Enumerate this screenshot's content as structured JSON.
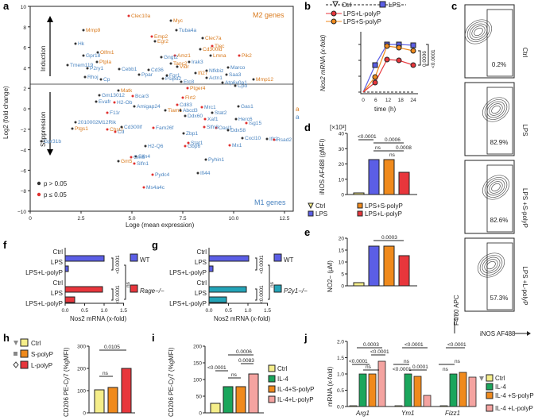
{
  "panels": {
    "a": {
      "label": "a",
      "title_top": "M2 genes",
      "title_bottom": "M1 genes",
      "induction": "Induction",
      "suppression": "Suppression",
      "ylabel": "Log2 (fold change)",
      "xlabel": "Loge (mean expression)",
      "legend_ns": "p > 0.05",
      "legend_sig": "p ≤ 0.05",
      "xticks": [
        "0",
        "2.5",
        "5.0",
        "7.5",
        "10.0",
        "12.5"
      ],
      "yticks": [
        "10",
        "8",
        "6",
        "4",
        "2",
        "0",
        "−2",
        "−4",
        "−6",
        "−8",
        "−10"
      ],
      "edge_marks": [
        "a",
        "a"
      ],
      "genes_m2": [
        "Clec10a",
        "Myc",
        "Mmp9",
        "Emp2",
        "Clec7a",
        "Egr2",
        "Tlec",
        "Cd300ld",
        "Olfm1",
        "Amz1",
        "Lmna",
        "Tanc2",
        "Pik2",
        "Ptpla",
        "Mmp12",
        "Chst7",
        "Ptgs1",
        "Matk",
        "Flrt2",
        "Gm5",
        "Tiam1",
        "Ptger4",
        "Vldr",
        "Ifi27"
      ],
      "genes_up_blue": [
        "Tuba4a",
        "Hk",
        "Gpr18",
        "Gngt2",
        "Irak3",
        "Marco",
        "Tmem119",
        "P2ry1",
        "Cebb1",
        "Cd36",
        "Ppar",
        "Fgr1",
        "Saa3",
        "Rhoj",
        "Cp",
        "Psipd2",
        "Etc8",
        "Nfkbiz",
        "Actn1",
        "Atp6v0a1",
        "Cpd"
      ],
      "genes_down_blue": [
        "Gm13012",
        "Bcar3",
        "Evafr",
        "H2-Ob",
        "Amigap24",
        "Cd83",
        "Abcd3",
        "Mrc1",
        "Gas1",
        "F11r",
        "Ddx60",
        "Xaf1",
        "Herc6",
        "Isg15",
        "Stat2",
        "Oasl1",
        "2010002M12Rik",
        "Cd",
        "Cd300lf",
        "Fam26f",
        "Zbp1",
        "Slfn8",
        "Ddx58",
        "Stat1",
        "Cxcl10",
        "Mx1",
        "Ifit2",
        "Rsad2",
        "H2-Q6",
        "Gbp6",
        "Slfn4",
        "Slfn1",
        "Pyhin1",
        "Pydc4",
        "Ifi44",
        "Ms4a4c",
        "Gpr31b",
        "Gm6"
      ]
    },
    "b": {
      "label": "b",
      "ylabel": "Nos2 mRNA (x-fold)",
      "xlabel": "time (h)",
      "xticks": [
        "0",
        "6",
        "12",
        "18",
        "24"
      ],
      "legend": [
        "Ctrl",
        "LPS",
        "LPS+L-polyP",
        "LPS+S-polyP"
      ],
      "pvals": [
        "<0.0001",
        "0.0006"
      ]
    },
    "c": {
      "label": "c",
      "rows": [
        {
          "name": "Ctrl",
          "pct": "0.2%"
        },
        {
          "name": "LPS",
          "pct": "82.9%"
        },
        {
          "name": "LPS +S-polyP",
          "pct": "82.6%"
        },
        {
          "name": "LPS +L-polyP",
          "pct": "57.3%"
        }
      ],
      "ylabel": "F4/80 APC",
      "xlabel": "iNOS AF488"
    },
    "d": {
      "label": "d",
      "ylabel": "iNOS AF488 (gMFI)",
      "scale": "[×10³]",
      "yticks": [
        "40",
        "30",
        "20",
        "10",
        "0"
      ],
      "pvals": [
        "<0.0001",
        "ns",
        "0.0006",
        "ns",
        "0.0008"
      ],
      "legend": [
        "Ctrl",
        "LPS",
        "LPS+S-polyP",
        "LPS+L-polyP"
      ]
    },
    "e": {
      "label": "e",
      "ylabel": "NO2− (µM)",
      "yticks": [
        "20",
        "15",
        "10",
        "5",
        "0"
      ],
      "pval": "0.0003"
    },
    "f": {
      "label": "f",
      "rows": [
        "Ctrl",
        "LPS",
        "LPS+L-polyP",
        "Ctrl",
        "LPS",
        "LPS+L-polyP"
      ],
      "groups": [
        "WT",
        "Rage−/−"
      ],
      "xlabel": "Nos2 mRNA (x-fold)",
      "xticks": [
        "0.0",
        "0.5",
        "1.0",
        "1.5"
      ],
      "pvals": [
        "<0.0001",
        "ns",
        "<0.0001"
      ]
    },
    "g": {
      "label": "g",
      "rows": [
        "Ctrl",
        "LPS",
        "LPS+L-polyP",
        "Ctrl",
        "LPS",
        "LPS+L-polyP"
      ],
      "groups": [
        "WT",
        "P2y1−/−"
      ],
      "xlabel": "Nos2 mRNA (x-fold)",
      "xticks": [
        "0.0",
        "0.5",
        "1.0",
        "1.5"
      ],
      "pvals": [
        "<0.0001",
        "ns",
        "<0.0001"
      ]
    },
    "h": {
      "label": "h",
      "legend": [
        "Ctrl",
        "S-polyP",
        "L-polyP"
      ],
      "ylabel": "CD206 PE-Cy7 (%gMFI)",
      "yticks": [
        "300",
        "200",
        "100",
        "0"
      ],
      "pvals": [
        "0.0105",
        "ns"
      ]
    },
    "i": {
      "label": "i",
      "ylabel": "CD206 PE-Cy7 (%gMFI)",
      "yticks": [
        "200",
        "150",
        "100",
        "50",
        "0"
      ],
      "legend": [
        "Ctrl",
        "IL-4",
        "IL-4+S-polyP",
        "IL-4+L-polyP"
      ],
      "pvals": [
        "<0.0001",
        "ns",
        "0.0006",
        "0.0083"
      ]
    },
    "j": {
      "label": "j",
      "ylabel": "mRNA (x-fold)",
      "yticks": [
        "2.0",
        "1.5",
        "1.0",
        "0.5",
        "0.0"
      ],
      "genes": [
        "Arg1",
        "Ym1",
        "Fizz1"
      ],
      "legend": [
        "Ctrl",
        "IL-4",
        "IL-4 +S-polyP",
        "IL-4 +L-polyP"
      ],
      "pvals_top": [
        "0.0003",
        "<0.0001",
        "<0.0001"
      ],
      "pvals": [
        "<0.0001",
        "<0.0001",
        "ns",
        "ns",
        "ns",
        "<0.0001",
        "0.0001",
        "ns"
      ]
    }
  },
  "colors": {
    "orange": "#d9791b",
    "blue": "#4a84c0",
    "lps": "#5b5ee6",
    "spolyp": "#f08a1c",
    "lpolyp": "#e8363c",
    "ctrl": "#f5ee8a",
    "teal": "#23a4b8",
    "il4": "#1aa65c",
    "il4l": "#f4a3a0"
  }
}
